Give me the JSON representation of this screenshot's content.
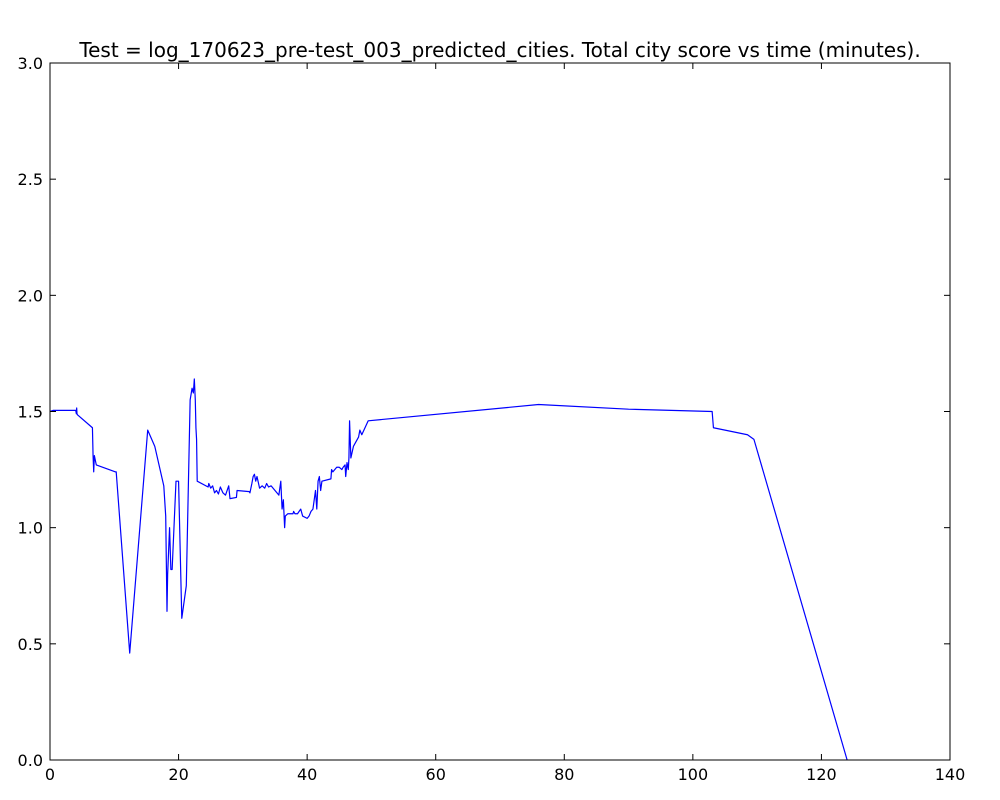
{
  "chart_data": {
    "type": "line",
    "title": "Test = log_170623_pre-test_003_predicted_cities. Total city score vs time (minutes).",
    "xlabel": "",
    "ylabel": "",
    "xlim": [
      0,
      140
    ],
    "ylim": [
      0.0,
      3.0
    ],
    "x_ticks": [
      0,
      20,
      40,
      60,
      80,
      100,
      120,
      140
    ],
    "x_tick_labels": [
      "0",
      "20",
      "40",
      "60",
      "80",
      "100",
      "120",
      "140"
    ],
    "y_ticks": [
      0.0,
      0.5,
      1.0,
      1.5,
      2.0,
      2.5,
      3.0
    ],
    "y_tick_labels": [
      "0.0",
      "0.5",
      "1.0",
      "1.5",
      "2.0",
      "2.5",
      "3.0"
    ],
    "grid": false,
    "line_color": "#0000ff",
    "series": [
      {
        "name": "",
        "x": [
          0.0,
          0.5,
          4.0,
          4.1,
          4.15,
          4.2,
          4.3,
          6.6,
          6.7,
          6.8,
          6.9,
          7.2,
          10.2,
          10.3,
          12.4,
          15.2,
          16.3,
          17.7,
          18.0,
          18.2,
          18.3,
          18.6,
          18.8,
          19.0,
          19.6,
          20.0,
          20.5,
          21.2,
          21.8,
          22.1,
          22.3,
          22.45,
          22.6,
          22.7,
          22.8,
          22.9,
          24.6,
          24.7,
          25.0,
          25.3,
          25.6,
          25.9,
          26.2,
          26.5,
          26.9,
          27.3,
          27.8,
          28.0,
          29.0,
          29.1,
          31.0,
          31.1,
          31.4,
          31.6,
          31.8,
          32.0,
          32.2,
          32.6,
          33.0,
          33.4,
          33.7,
          34.0,
          34.4,
          35.0,
          35.6,
          35.9,
          36.1,
          36.3,
          36.5,
          36.6,
          37.0,
          37.8,
          37.9,
          38.1,
          38.5,
          39.0,
          39.3,
          40.0,
          40.3,
          40.6,
          40.9,
          41.1,
          41.3,
          41.5,
          41.7,
          41.9,
          42.1,
          42.3,
          43.7,
          43.8,
          44.0,
          44.6,
          45.0,
          45.4,
          45.6,
          45.9,
          46.0,
          46.2,
          46.4,
          46.5,
          46.6,
          46.8,
          47.2,
          48.0,
          48.2,
          48.5,
          49.0,
          49.5,
          76.0,
          90.0,
          103.0,
          103.2,
          108.5,
          109.5,
          124.0
        ],
        "values": [
          1.5,
          1.505,
          1.505,
          1.49,
          1.515,
          1.49,
          1.485,
          1.43,
          1.31,
          1.24,
          1.31,
          1.27,
          1.24,
          1.24,
          0.46,
          1.42,
          1.35,
          1.18,
          1.05,
          0.64,
          0.8,
          1.0,
          0.82,
          0.82,
          1.2,
          1.2,
          0.61,
          0.75,
          1.55,
          1.6,
          1.58,
          1.64,
          1.55,
          1.43,
          1.38,
          1.2,
          1.175,
          1.19,
          1.17,
          1.18,
          1.15,
          1.16,
          1.145,
          1.175,
          1.15,
          1.14,
          1.18,
          1.125,
          1.13,
          1.16,
          1.155,
          1.15,
          1.19,
          1.22,
          1.23,
          1.2,
          1.22,
          1.17,
          1.18,
          1.17,
          1.19,
          1.175,
          1.18,
          1.16,
          1.14,
          1.2,
          1.08,
          1.12,
          1.0,
          1.05,
          1.06,
          1.06,
          1.07,
          1.06,
          1.06,
          1.08,
          1.05,
          1.04,
          1.05,
          1.07,
          1.08,
          1.12,
          1.16,
          1.08,
          1.2,
          1.22,
          1.16,
          1.2,
          1.21,
          1.25,
          1.24,
          1.26,
          1.26,
          1.25,
          1.26,
          1.27,
          1.22,
          1.28,
          1.25,
          1.3,
          1.46,
          1.3,
          1.35,
          1.39,
          1.42,
          1.4,
          1.43,
          1.46,
          1.53,
          1.51,
          1.5,
          1.43,
          1.4,
          1.38,
          0.0
        ]
      }
    ]
  }
}
